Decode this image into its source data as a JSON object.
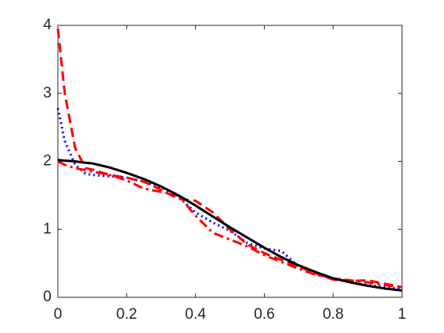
{
  "chart_data": {
    "type": "line",
    "x": [
      0,
      0.02,
      0.05,
      0.08,
      0.1,
      0.15,
      0.2,
      0.25,
      0.3,
      0.35,
      0.4,
      0.45,
      0.5,
      0.55,
      0.6,
      0.65,
      0.7,
      0.75,
      0.8,
      0.85,
      0.9,
      0.95,
      1
    ],
    "series": [
      {
        "color": "#0000ff",
        "linestyle": "dotted",
        "values": [
          2.78,
          2.3,
          1.95,
          1.82,
          1.8,
          1.78,
          1.76,
          1.7,
          1.62,
          1.48,
          1.25,
          1.1,
          0.98,
          0.8,
          0.72,
          0.68,
          0.45,
          0.35,
          0.27,
          0.22,
          0.18,
          0.15,
          0.12
        ]
      },
      {
        "color": "#ff0000",
        "linestyle": "dashed",
        "values": [
          3.95,
          3.0,
          2.2,
          1.9,
          1.88,
          1.8,
          1.76,
          1.7,
          1.58,
          1.45,
          1.42,
          1.25,
          1.0,
          0.78,
          0.65,
          0.55,
          0.45,
          0.35,
          0.26,
          0.24,
          0.25,
          0.2,
          0.15
        ]
      },
      {
        "color": "#ff0000",
        "linestyle": "dashdot",
        "values": [
          2.0,
          1.95,
          1.9,
          1.87,
          1.85,
          1.8,
          1.72,
          1.6,
          1.55,
          1.5,
          1.2,
          0.95,
          0.85,
          0.75,
          0.62,
          0.52,
          0.42,
          0.33,
          0.28,
          0.25,
          0.22,
          0.18,
          0.15
        ]
      },
      {
        "color": "#000000",
        "linestyle": "solid",
        "values": [
          2.02,
          2.01,
          2.0,
          1.98,
          1.97,
          1.91,
          1.83,
          1.74,
          1.63,
          1.5,
          1.35,
          1.19,
          1.03,
          0.88,
          0.73,
          0.59,
          0.47,
          0.37,
          0.28,
          0.22,
          0.17,
          0.13,
          0.1
        ]
      }
    ],
    "xlim": [
      0,
      1
    ],
    "xticks": [
      0,
      0.2,
      0.4,
      0.6,
      0.8,
      1
    ],
    "ylim": [
      0,
      4
    ],
    "yticks": [
      0,
      1,
      2,
      3,
      4
    ],
    "box": true
  }
}
